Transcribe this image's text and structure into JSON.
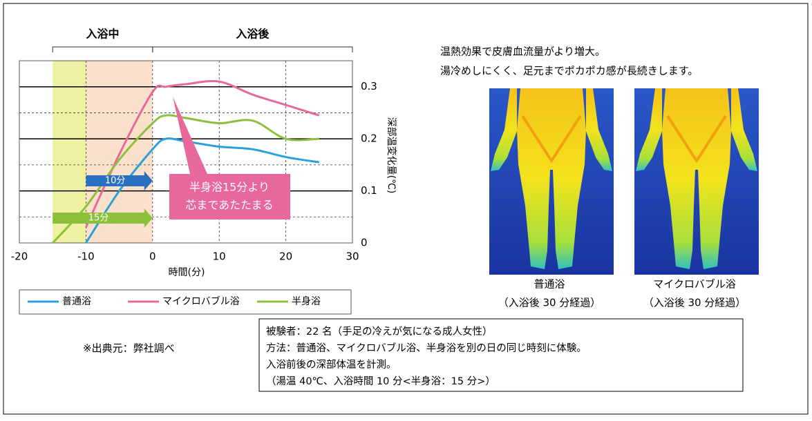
{
  "chart_data": {
    "type": "line",
    "phases": [
      {
        "label": "入浴中",
        "start": -15,
        "end": 0
      },
      {
        "label": "入浴後",
        "start": 0,
        "end": 30
      }
    ],
    "bands": [
      {
        "start": -15,
        "end": -10,
        "color": "#eef1a2"
      },
      {
        "start": -10,
        "end": 0,
        "color": "#fbe1cb"
      }
    ],
    "x": [
      -15,
      -10,
      -5,
      0,
      2,
      5,
      10,
      15,
      20,
      25
    ],
    "series": [
      {
        "name": "普通浴",
        "color": "#2aa0dc",
        "values": [
          null,
          0,
          0.1,
          0.18,
          0.2,
          0.195,
          0.185,
          0.18,
          0.165,
          0.155
        ]
      },
      {
        "name": "マイクロバブル浴",
        "color": "#e8679d",
        "values": [
          null,
          0.03,
          0.17,
          0.29,
          0.3,
          0.305,
          0.31,
          0.285,
          0.265,
          0.245
        ]
      },
      {
        "name": "半身浴",
        "color": "#8cbf3a",
        "values": [
          0,
          0.07,
          0.16,
          0.23,
          0.245,
          0.24,
          0.23,
          0.235,
          0.2,
          0.2
        ]
      }
    ],
    "xlim": [
      -20,
      30
    ],
    "xticks": [
      -20,
      -10,
      0,
      10,
      20,
      30
    ],
    "ylim": [
      0,
      0.35
    ],
    "yticks": [
      0,
      0.1,
      0.2,
      0.3
    ],
    "minor_yticks": [
      0.05,
      0.15,
      0.25
    ],
    "x_label": "時間(分)",
    "y_label": "深部温変化量(℃)",
    "arrows": [
      {
        "label": "10分",
        "start": -10,
        "end": 0,
        "color": "#2a6fc0"
      },
      {
        "label": "15分",
        "start": -15,
        "end": 0,
        "color": "#8cbf3a"
      }
    ],
    "callout": [
      "半身浴15分より",
      "芯まであたたまる"
    ]
  },
  "description": [
    "温熱効果で皮膚血流量がより増大。",
    "湯冷めしにくく、足元までポカポカ感が長続きします。"
  ],
  "images": [
    {
      "title": "普通浴",
      "caption": "（入浴後 30 分経過）"
    },
    {
      "title": "マイクロバブル浴",
      "caption": "（入浴後 30 分経過）"
    }
  ],
  "source": "※出典元：弊社調べ",
  "method": [
    "被験者：22 名（手足の冷えが気になる成人女性）",
    "方法：普通浴、マイクロバブル浴、半身浴を別の日の同じ時刻に体験。",
    "入浴前後の深部体温を計測。",
    "（湯温 40℃、入浴時間 10 分<半身浴：15 分>）"
  ]
}
